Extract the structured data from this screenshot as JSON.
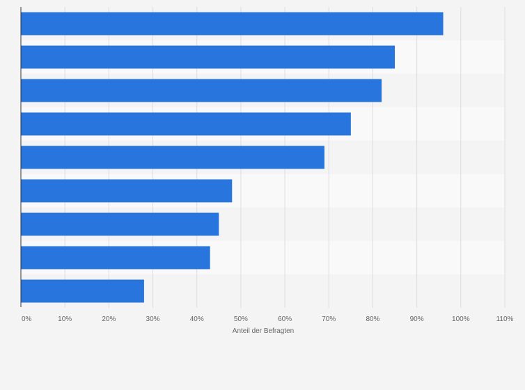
{
  "chart_data": {
    "type": "bar",
    "orientation": "horizontal",
    "title": "",
    "ylabel": "",
    "xlabel": "Anteil der Befragten",
    "categories": [
      "",
      "",
      "",
      "",
      "",
      "",
      "",
      "",
      ""
    ],
    "values": [
      96,
      85,
      82,
      75,
      69,
      48,
      45,
      43,
      28
    ],
    "value_unit": "%",
    "xlim": [
      0,
      110
    ],
    "xticks": [
      "0%",
      "10%",
      "20%",
      "30%",
      "40%",
      "50%",
      "60%",
      "70%",
      "80%",
      "90%",
      "100%",
      "110%"
    ],
    "grid": true,
    "legend": "none",
    "colors": {
      "bar": "#2876dd",
      "band_dark": "#f4f4f4",
      "band_light": "#f9f9f9",
      "gridline": "#dcdcdc",
      "axis": "#333333",
      "text": "#666666"
    }
  }
}
